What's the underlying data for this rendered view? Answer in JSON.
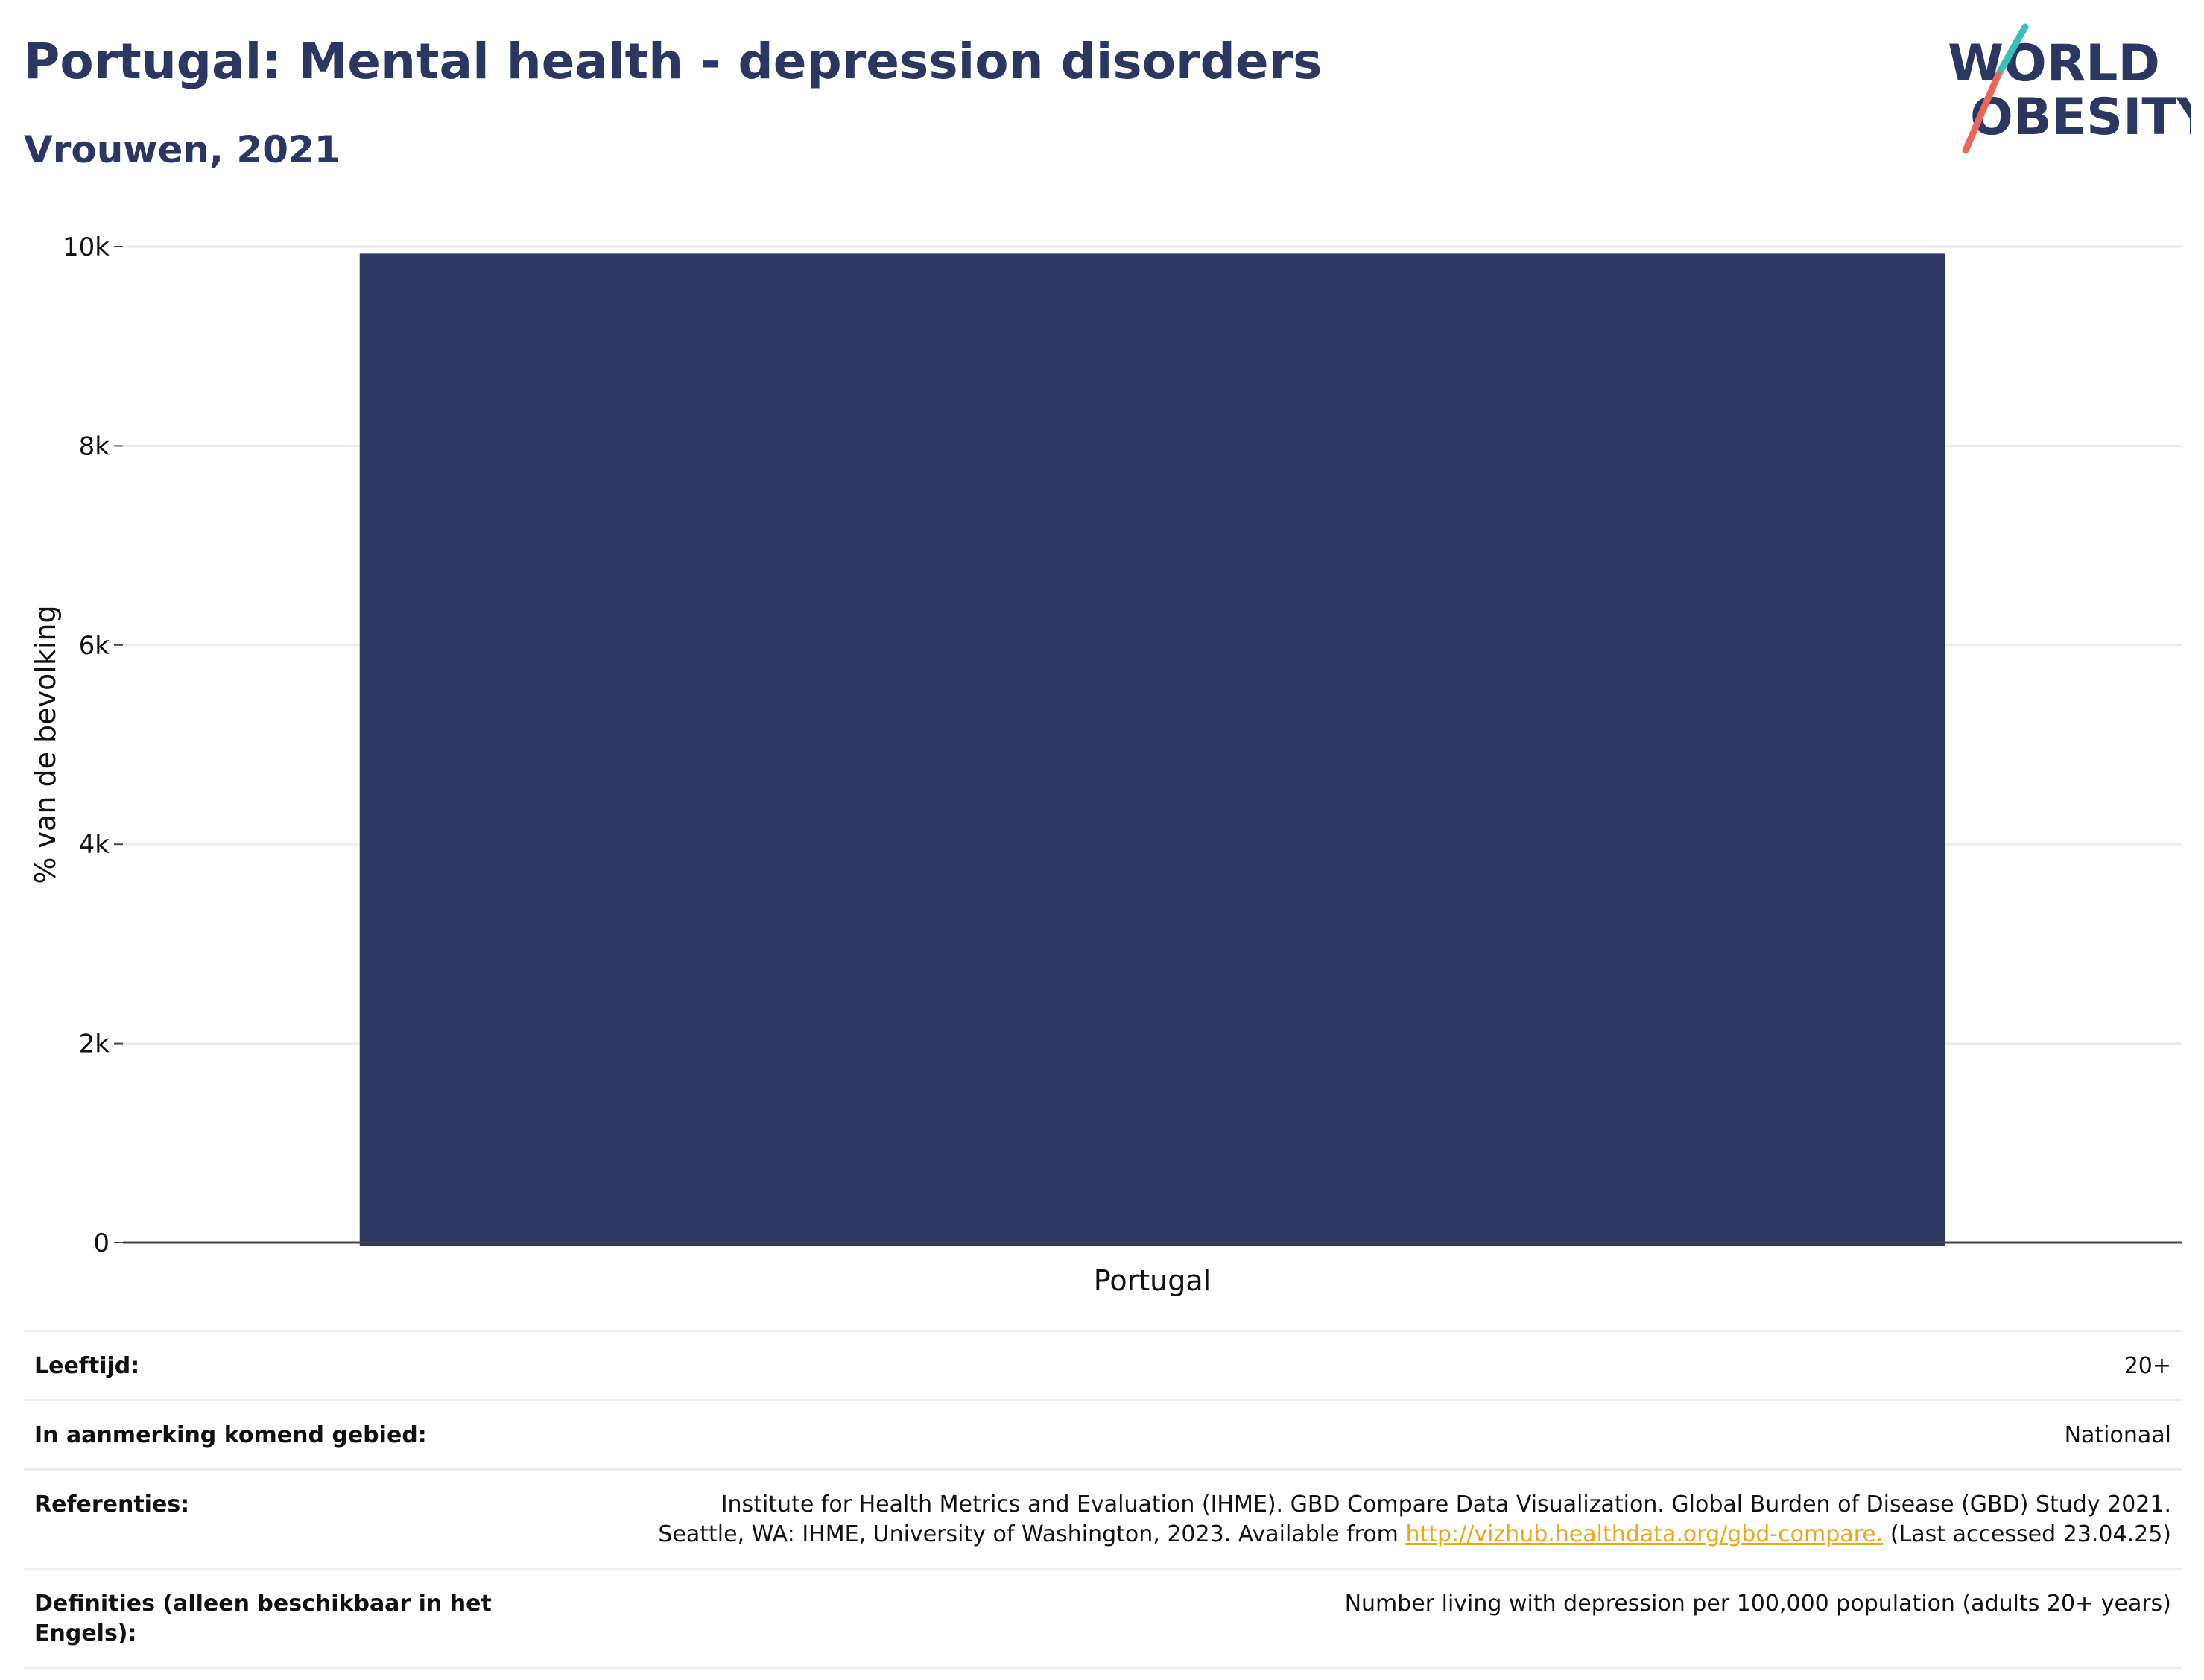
{
  "header": {
    "title": "Portugal: Mental health - depression disorders",
    "subtitle": "Vrouwen, 2021"
  },
  "logo": {
    "line1": "WORLD",
    "line2": "OBESITY",
    "colors": {
      "text": "#2b3661",
      "slash_teal": "#3bbfb6",
      "slash_coral": "#e8665a"
    }
  },
  "chart_data": {
    "type": "bar",
    "categories": [
      "Portugal"
    ],
    "values": [
      9930
    ],
    "ylabel": "% van de bevolking",
    "xlabel": "",
    "ylim": [
      0,
      10000
    ],
    "yticks": [
      {
        "value": 0,
        "label": "0"
      },
      {
        "value": 2000,
        "label": "2k"
      },
      {
        "value": 4000,
        "label": "4k"
      },
      {
        "value": 6000,
        "label": "6k"
      },
      {
        "value": 8000,
        "label": "8k"
      },
      {
        "value": 10000,
        "label": "10k"
      }
    ],
    "grid": true,
    "bar_color": "#2b3661"
  },
  "metadata": [
    {
      "key": "Leeftijd:",
      "value": "20+"
    },
    {
      "key": "In aanmerking komend gebied:",
      "value": "Nationaal"
    },
    {
      "key": "Referenties:",
      "value_line1": "Institute for Health Metrics and Evaluation (IHME). GBD Compare Data Visualization. Global Burden of Disease (GBD) Study 2021.",
      "value_line2_pre": "Seattle, WA: IHME, University of Washington, 2023. Available from ",
      "value_link": "http://vizhub.healthdata.org/gbd-compare.",
      "value_line2_post": " (Last accessed 23.04.25)"
    },
    {
      "key": "Definities (alleen beschikbaar in het Engels):",
      "value": "Number living with depression per 100,000 population (adults 20+ years)"
    }
  ]
}
